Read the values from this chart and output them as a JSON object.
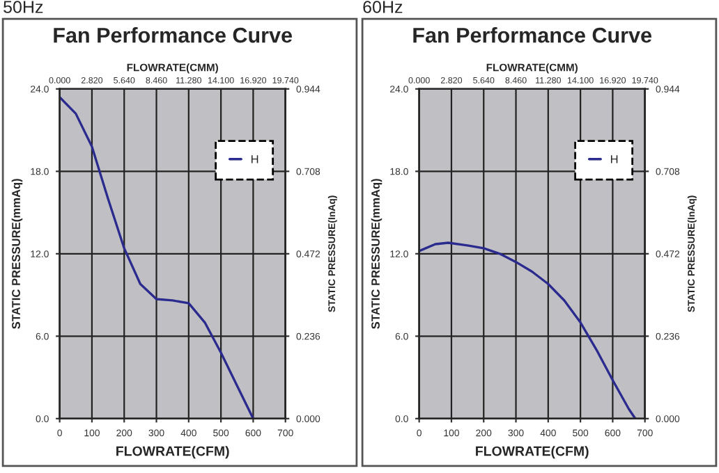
{
  "chart_data": [
    {
      "type": "line",
      "title": "Fan Performance Curve",
      "annotations": [
        "50Hz"
      ],
      "xlabel": "FLOWRATE(CFM)",
      "ylabel": "STATIC PRESSURE(mmAq)",
      "y2label": "STATIC PRESSURE(InAq)",
      "x2label": "FLOWRATE(CMM)",
      "x": [
        0,
        50,
        100,
        150,
        200,
        250,
        300,
        350,
        400,
        450,
        500,
        550,
        600
      ],
      "series": [
        {
          "name": "H",
          "color": "#2b2b8f",
          "values": [
            23.4,
            22.2,
            19.8,
            16.0,
            12.4,
            9.8,
            8.7,
            8.6,
            8.4,
            7.0,
            4.8,
            2.4,
            0
          ]
        }
      ],
      "xlim": [
        0,
        700
      ],
      "xticks": [
        0,
        100,
        200,
        300,
        400,
        500,
        600,
        700
      ],
      "ylim": [
        0,
        24
      ],
      "yticks": [
        {
          "value": 0,
          "label": "0.0"
        },
        {
          "value": 6,
          "label": "6.0"
        },
        {
          "value": 12,
          "label": "12.0"
        },
        {
          "value": 18,
          "label": "18.0"
        },
        {
          "value": 24,
          "label": "24.0"
        }
      ],
      "y2lim": [
        0,
        0.944
      ],
      "y2ticks": [
        {
          "value": 0,
          "label": "0.000"
        },
        {
          "value": 0.236,
          "label": "0.236"
        },
        {
          "value": 0.472,
          "label": "0.472"
        },
        {
          "value": 0.708,
          "label": "0.708"
        },
        {
          "value": 0.944,
          "label": "0.944"
        }
      ],
      "x2lim": [
        0,
        19.74
      ],
      "x2ticks": [
        {
          "value": 0,
          "label": "0.000"
        },
        {
          "value": 2.82,
          "label": "2.820"
        },
        {
          "value": 5.64,
          "label": "5.640"
        },
        {
          "value": 8.46,
          "label": "8.460"
        },
        {
          "value": 11.28,
          "label": "11.280"
        },
        {
          "value": 14.1,
          "label": "14.100"
        },
        {
          "value": 16.92,
          "label": "16.920"
        },
        {
          "value": 19.74,
          "label": "19.740"
        }
      ],
      "grid": true,
      "legend": "top right"
    },
    {
      "type": "line",
      "title": "Fan Performance Curve",
      "annotations": [
        "60Hz"
      ],
      "xlabel": "FLOWRATE(CFM)",
      "ylabel": "STATIC PRESSURE(mmAq)",
      "y2label": "STATIC PRESSURE(InAq)",
      "x2label": "FLOWRATE(CMM)",
      "x": [
        0,
        50,
        90,
        150,
        200,
        250,
        300,
        350,
        400,
        450,
        500,
        550,
        600,
        650,
        670
      ],
      "series": [
        {
          "name": "H",
          "color": "#2b2b8f",
          "values": [
            12.2,
            12.7,
            12.8,
            12.6,
            12.4,
            12.0,
            11.4,
            10.7,
            9.8,
            8.6,
            7.0,
            5.0,
            2.8,
            0.7,
            0
          ]
        }
      ],
      "xlim": [
        0,
        700
      ],
      "xticks": [
        0,
        100,
        200,
        300,
        400,
        500,
        600,
        700
      ],
      "ylim": [
        0,
        24
      ],
      "yticks": [
        {
          "value": 0,
          "label": "0.0"
        },
        {
          "value": 6,
          "label": "6.0"
        },
        {
          "value": 12,
          "label": "12.0"
        },
        {
          "value": 18,
          "label": "18.0"
        },
        {
          "value": 24,
          "label": "24.0"
        }
      ],
      "y2lim": [
        0,
        0.944
      ],
      "y2ticks": [
        {
          "value": 0,
          "label": "0.000"
        },
        {
          "value": 0.236,
          "label": "0.236"
        },
        {
          "value": 0.472,
          "label": "0.472"
        },
        {
          "value": 0.708,
          "label": "0.708"
        },
        {
          "value": 0.944,
          "label": "0.944"
        }
      ],
      "x2lim": [
        0,
        19.74
      ],
      "x2ticks": [
        {
          "value": 0,
          "label": "0.000"
        },
        {
          "value": 2.82,
          "label": "2.820"
        },
        {
          "value": 5.64,
          "label": "5.640"
        },
        {
          "value": 8.46,
          "label": "8.460"
        },
        {
          "value": 11.28,
          "label": "11.280"
        },
        {
          "value": 14.1,
          "label": "14.100"
        },
        {
          "value": 16.92,
          "label": "16.920"
        },
        {
          "value": 19.74,
          "label": "19.740"
        }
      ],
      "grid": true,
      "legend": "top right"
    }
  ]
}
